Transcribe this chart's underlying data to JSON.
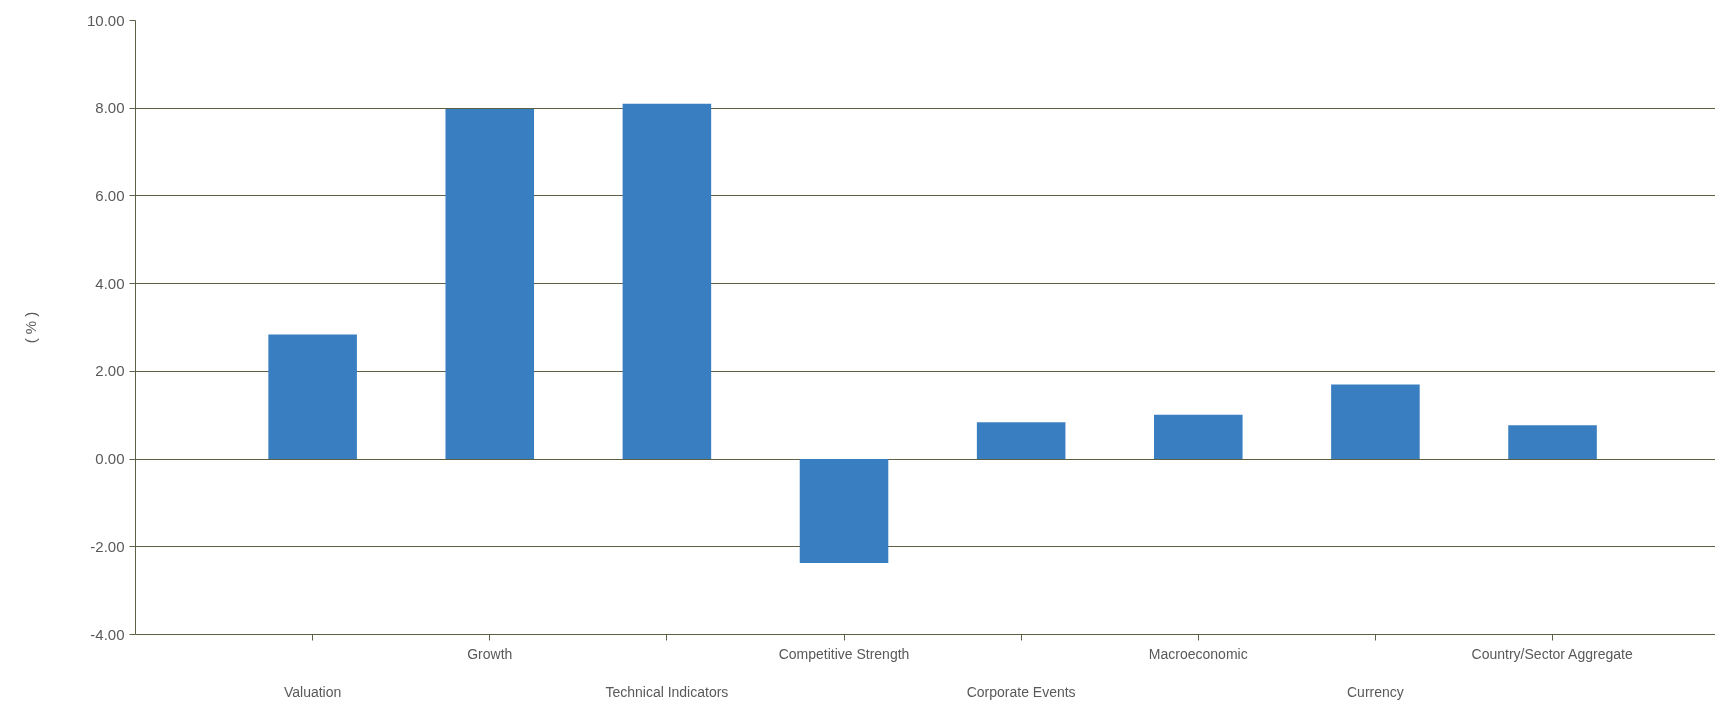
{
  "chart_data": {
    "type": "bar",
    "ylabel": "( % )",
    "categories": [
      "Valuation",
      "Growth",
      "Technical Indicators",
      "Competitive Strength",
      "Corporate Events",
      "Macroeconomic",
      "Currency",
      "Country/Sector Aggregate"
    ],
    "values": [
      2.84,
      7.98,
      8.1,
      -2.37,
      0.84,
      1.01,
      1.7,
      0.77
    ],
    "color": "#3a7ec2",
    "ylim": [
      -4,
      10
    ],
    "yticks": [
      {
        "value": -4,
        "label": "-4.00"
      },
      {
        "value": -2,
        "label": "-2.00"
      },
      {
        "value": 0,
        "label": "0.00"
      },
      {
        "value": 2,
        "label": "2.00"
      },
      {
        "value": 4,
        "label": "4.00"
      },
      {
        "value": 6,
        "label": "6.00"
      },
      {
        "value": 8,
        "label": "8.00"
      },
      {
        "value": 10,
        "label": "10.00"
      }
    ],
    "grid": "y"
  }
}
